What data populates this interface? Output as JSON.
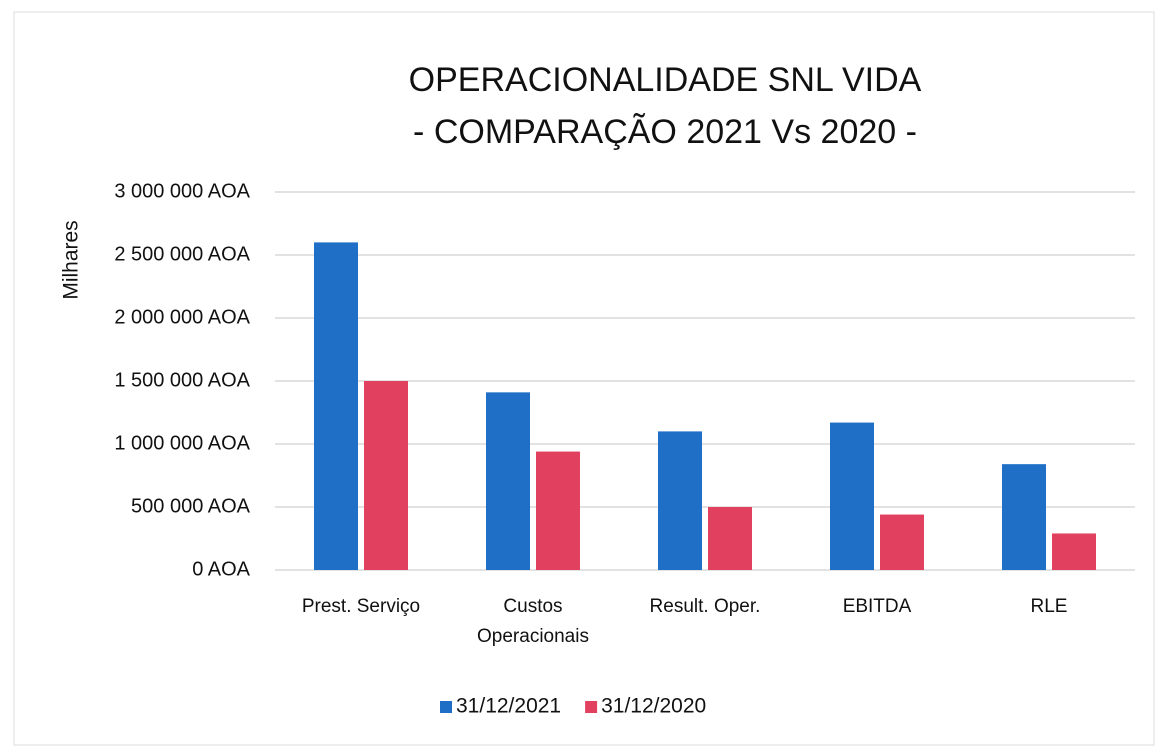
{
  "chart_data": {
    "type": "bar",
    "title": "OPERACIONALIDADE SNL VIDA",
    "subtitle": "- COMPARAÇÃO  2021 Vs 2020 -",
    "y_label": "Milhares",
    "categories": [
      "Prest. Serviço",
      "Custos Operacionais",
      "Result. Oper.",
      "EBITDA",
      "RLE"
    ],
    "series": [
      {
        "name": "31/12/2021",
        "color": "#1f6fc6",
        "values": [
          2600000,
          1410000,
          1100000,
          1170000,
          840000
        ]
      },
      {
        "name": "31/12/2020",
        "color": "#e2405f",
        "values": [
          1500000,
          940000,
          500000,
          440000,
          290000
        ]
      }
    ],
    "ylim": [
      0,
      3000000
    ],
    "yticks": [
      {
        "value": 0,
        "label": "0 AOA"
      },
      {
        "value": 500000,
        "label": "500 000 AOA"
      },
      {
        "value": 1000000,
        "label": "1 000 000 AOA"
      },
      {
        "value": 1500000,
        "label": "1 500 000 AOA"
      },
      {
        "value": 2000000,
        "label": "2 000 000 AOA"
      },
      {
        "value": 2500000,
        "label": "2 500 000 AOA"
      },
      {
        "value": 3000000,
        "label": "3 000 000 AOA"
      }
    ],
    "grid": true,
    "legend": "bottom"
  }
}
